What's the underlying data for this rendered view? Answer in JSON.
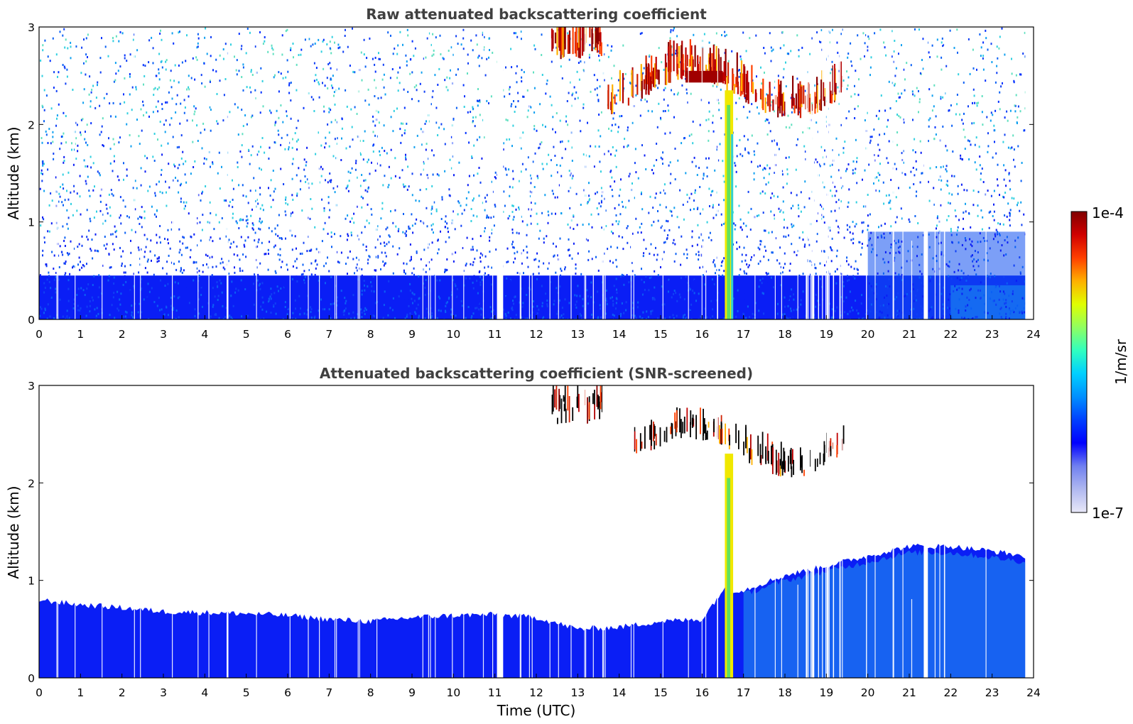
{
  "chart_data": [
    {
      "type": "heatmap",
      "title": "Raw attenuated backscattering coefficient",
      "xlabel": "",
      "ylabel": "Altitude (km)",
      "xlim": [
        0,
        24
      ],
      "ylim": [
        0,
        3
      ],
      "xticks": [
        "0",
        "1",
        "2",
        "3",
        "4",
        "5",
        "6",
        "7",
        "8",
        "9",
        "10",
        "11",
        "12",
        "13",
        "14",
        "15",
        "16",
        "17",
        "18",
        "19",
        "20",
        "21",
        "22",
        "23",
        "24"
      ],
      "yticks": [
        "0",
        "1",
        "2",
        "3"
      ],
      "colorscale": "log",
      "features": {
        "data_gaps_hours": [
          [
            11.05,
            11.2
          ],
          [
            21.35,
            21.45
          ]
        ],
        "data_end_hour": 23.8,
        "dense_low_layer_top_km": 0.45,
        "cloud_layer_km": [
          2.1,
          3.0
        ],
        "cloud_time_hours": [
          12.3,
          19.4
        ],
        "precipitation_shaft_hours": [
          16.55,
          16.75
        ]
      }
    },
    {
      "type": "heatmap",
      "title": "Attenuated backscattering coefficient (SNR-screened)",
      "xlabel": "Time (UTC)",
      "ylabel": "Altitude (km)",
      "xlim": [
        0,
        24
      ],
      "ylim": [
        0,
        3
      ],
      "xticks": [
        "0",
        "1",
        "2",
        "3",
        "4",
        "5",
        "6",
        "7",
        "8",
        "9",
        "10",
        "11",
        "12",
        "13",
        "14",
        "15",
        "16",
        "17",
        "18",
        "19",
        "20",
        "21",
        "22",
        "23",
        "24"
      ],
      "yticks": [
        "0",
        "1",
        "2",
        "3"
      ],
      "colorscale": "log",
      "boundary_layer_top_km": [
        [
          0,
          0.8
        ],
        [
          1,
          0.75
        ],
        [
          2,
          0.72
        ],
        [
          3,
          0.68
        ],
        [
          4,
          0.67
        ],
        [
          5,
          0.66
        ],
        [
          6,
          0.64
        ],
        [
          7,
          0.6
        ],
        [
          8,
          0.58
        ],
        [
          9,
          0.62
        ],
        [
          10,
          0.64
        ],
        [
          11,
          0.65
        ],
        [
          12,
          0.62
        ],
        [
          13,
          0.5
        ],
        [
          14,
          0.52
        ],
        [
          15,
          0.58
        ],
        [
          16,
          0.6
        ],
        [
          16.5,
          0.9
        ],
        [
          17,
          0.9
        ],
        [
          18,
          1.05
        ],
        [
          19,
          1.15
        ],
        [
          20,
          1.25
        ],
        [
          21,
          1.35
        ],
        [
          22,
          1.35
        ],
        [
          23,
          1.3
        ],
        [
          23.8,
          1.25
        ]
      ]
    }
  ],
  "colorbar": {
    "label": "1/m/sr",
    "max_label": "1e-4",
    "min_label": "1e-7",
    "colors": [
      "#e8e8f8",
      "#b0b8f0",
      "#7080f0",
      "#0000ff",
      "#0040ff",
      "#0090ff",
      "#00d0ff",
      "#30ffc0",
      "#90ff60",
      "#e0ff00",
      "#ffb000",
      "#ff4000",
      "#d00000",
      "#800000"
    ]
  }
}
